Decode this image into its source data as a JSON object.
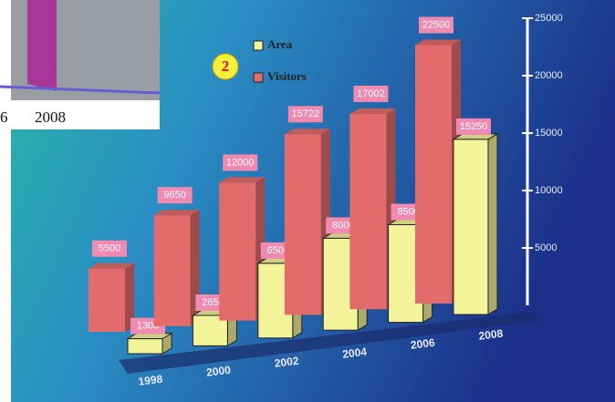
{
  "chart_data": {
    "type": "bar3d",
    "categories": [
      "1998",
      "2000",
      "2002",
      "2004",
      "2006",
      "2008"
    ],
    "series": [
      {
        "name": "Visitors",
        "color": "#e46b6b",
        "values": [
          5500,
          9650,
          12000,
          15722,
          17002,
          22500
        ]
      },
      {
        "name": "Area",
        "color": "#f3f39a",
        "values": [
          1300,
          2650,
          6500,
          8000,
          8500,
          15250
        ]
      }
    ],
    "ylim": [
      0,
      25000
    ],
    "yticks": [
      5000,
      10000,
      15000,
      20000,
      25000
    ],
    "badge": "2",
    "inset_labels": [
      "6",
      "2008"
    ]
  }
}
